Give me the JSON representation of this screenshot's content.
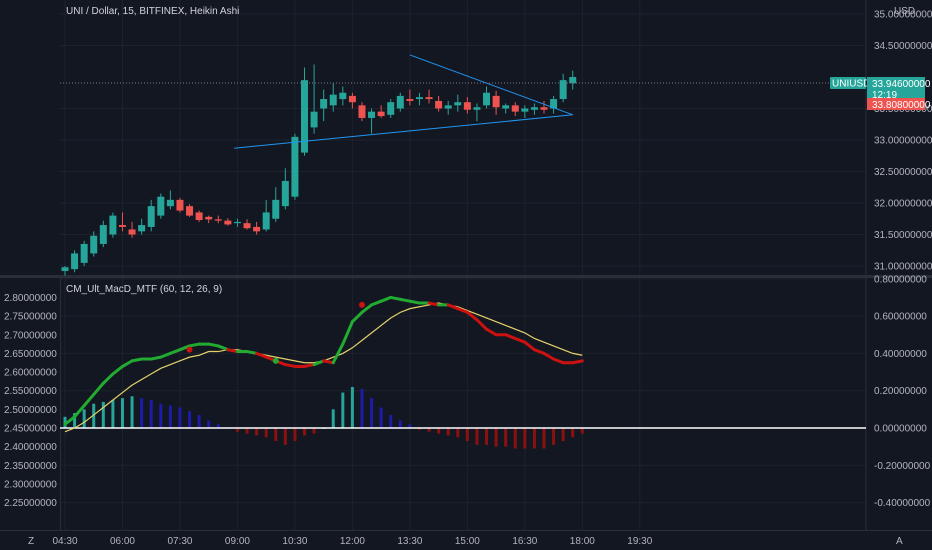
{
  "header": {
    "symbol_title": "UNI / Dollar, 15, BITFINEX, Heikin Ashi",
    "currency": "USD"
  },
  "price_pane": {
    "ticker_tag": "UNIUSD",
    "last_price": "33.94600000",
    "countdown": "12:19",
    "low_tag": "33.80800000",
    "y_ticks": [
      "35.00000000",
      "34.50000000",
      "33.50000000",
      "33.00000000",
      "32.50000000",
      "32.00000000",
      "31.50000000",
      "31.00000000"
    ],
    "colors": {
      "up": "#26a69a",
      "down": "#ef5350",
      "trendline": "#2196f3",
      "last_price_line": "#787b86"
    }
  },
  "indicator_pane": {
    "title": "CM_Ult_MacD_MTF (60, 12, 26, 9)",
    "right_ticks": [
      "0.80000000",
      "0.60000000",
      "0.40000000",
      "0.20000000",
      "0.00000000",
      "-0.20000000",
      "-0.40000000"
    ],
    "left_ticks": [
      "2.80000000",
      "2.75000000",
      "2.70000000",
      "2.65000000",
      "2.60000000",
      "2.55000000",
      "2.50000000",
      "2.45000000",
      "2.40000000",
      "2.35000000",
      "2.30000000",
      "2.25000000"
    ],
    "colors": {
      "macd_up": "#22ab31",
      "macd_down": "#cc1111",
      "signal": "#e6d26b",
      "hist_teal": "#26a69a",
      "hist_blue": "#1c1ca8",
      "hist_red": "#8b1010",
      "zero_line": "#ffffff"
    }
  },
  "x_axis": {
    "ticks": [
      "04:30",
      "06:00",
      "07:30",
      "09:00",
      "10:30",
      "12:00",
      "13:30",
      "15:00",
      "16:30",
      "18:00",
      "19:30"
    ]
  },
  "corner_labels": {
    "left": "Z",
    "right": "A"
  },
  "chart_data": [
    {
      "type": "candlestick",
      "title": "UNI / Dollar, 15, BITFINEX, Heikin Ashi",
      "x_start": "04:30",
      "interval_minutes": 15,
      "ylim": [
        30.85,
        35.2
      ],
      "ohlc": [
        [
          30.92,
          31.0,
          30.85,
          30.98
        ],
        [
          30.95,
          31.25,
          30.9,
          31.2
        ],
        [
          31.05,
          31.4,
          31.0,
          31.35
        ],
        [
          31.2,
          31.55,
          31.15,
          31.48
        ],
        [
          31.35,
          31.72,
          31.3,
          31.65
        ],
        [
          31.5,
          31.85,
          31.45,
          31.8
        ],
        [
          31.65,
          31.85,
          31.55,
          31.62
        ],
        [
          31.58,
          31.7,
          31.45,
          31.5
        ],
        [
          31.55,
          31.75,
          31.5,
          31.65
        ],
        [
          31.62,
          32.05,
          31.55,
          31.95
        ],
        [
          31.8,
          32.15,
          31.75,
          32.1
        ],
        [
          31.95,
          32.2,
          31.9,
          32.05
        ],
        [
          32.05,
          32.08,
          31.85,
          31.88
        ],
        [
          31.95,
          31.98,
          31.78,
          31.8
        ],
        [
          31.85,
          31.88,
          31.7,
          31.73
        ],
        [
          31.78,
          31.8,
          31.68,
          31.74
        ],
        [
          31.74,
          31.8,
          31.68,
          31.72
        ],
        [
          31.72,
          31.76,
          31.64,
          31.66
        ],
        [
          31.68,
          31.75,
          31.62,
          31.7
        ],
        [
          31.68,
          31.74,
          31.58,
          31.6
        ],
        [
          31.62,
          31.7,
          31.5,
          31.55
        ],
        [
          31.58,
          32.05,
          31.55,
          31.85
        ],
        [
          31.75,
          32.25,
          31.7,
          32.05
        ],
        [
          31.95,
          32.55,
          31.9,
          32.35
        ],
        [
          32.1,
          33.1,
          32.05,
          33.05
        ],
        [
          32.8,
          34.15,
          32.75,
          33.95
        ],
        [
          33.2,
          34.2,
          33.1,
          33.45
        ],
        [
          33.5,
          33.8,
          33.3,
          33.65
        ],
        [
          33.55,
          33.9,
          33.45,
          33.72
        ],
        [
          33.65,
          33.85,
          33.55,
          33.75
        ],
        [
          33.7,
          33.75,
          33.5,
          33.6
        ],
        [
          33.55,
          33.6,
          33.3,
          33.35
        ],
        [
          33.35,
          33.5,
          33.1,
          33.45
        ],
        [
          33.45,
          33.55,
          33.35,
          33.38
        ],
        [
          33.4,
          33.65,
          33.35,
          33.6
        ],
        [
          33.5,
          33.75,
          33.45,
          33.7
        ],
        [
          33.65,
          33.8,
          33.55,
          33.62
        ],
        [
          33.65,
          33.75,
          33.55,
          33.68
        ],
        [
          33.68,
          33.8,
          33.58,
          33.65
        ],
        [
          33.62,
          33.7,
          33.45,
          33.5
        ],
        [
          33.5,
          33.62,
          33.4,
          33.55
        ],
        [
          33.55,
          33.72,
          33.45,
          33.6
        ],
        [
          33.6,
          33.68,
          33.42,
          33.48
        ],
        [
          33.48,
          33.58,
          33.3,
          33.52
        ],
        [
          33.55,
          33.85,
          33.5,
          33.75
        ],
        [
          33.7,
          33.78,
          33.4,
          33.52
        ],
        [
          33.5,
          33.58,
          33.42,
          33.55
        ],
        [
          33.55,
          33.6,
          33.38,
          33.45
        ],
        [
          33.45,
          33.55,
          33.35,
          33.5
        ],
        [
          33.48,
          33.58,
          33.4,
          33.52
        ],
        [
          33.52,
          33.62,
          33.42,
          33.48
        ],
        [
          33.5,
          33.7,
          33.42,
          33.65
        ],
        [
          33.65,
          34.05,
          33.6,
          33.95
        ],
        [
          33.9,
          34.1,
          33.8,
          34.0
        ]
      ],
      "trendlines": [
        {
          "from": [
            "13:30",
            34.35
          ],
          "to": [
            "17:45",
            33.4
          ]
        },
        {
          "from": [
            "08:55",
            32.87
          ],
          "to": [
            "17:45",
            33.4
          ]
        }
      ],
      "last_price": 33.946
    },
    {
      "type": "line",
      "title": "CM_Ult_MacD_MTF (60, 12, 26, 9)",
      "ylim": [
        -0.48,
        0.8
      ],
      "series": [
        {
          "values": [
            0.02,
            0.06,
            0.12,
            0.18,
            0.24,
            0.29,
            0.33,
            0.36,
            0.37,
            0.37,
            0.38,
            0.4,
            0.42,
            0.44,
            0.45,
            0.45,
            0.44,
            0.42,
            0.41,
            0.41,
            0.4,
            0.38,
            0.36,
            0.34,
            0.33,
            0.33,
            0.34,
            0.36,
            0.35,
            0.45,
            0.57,
            0.62,
            0.66,
            0.68,
            0.7,
            0.69,
            0.68,
            0.67,
            0.67,
            0.66,
            0.66,
            0.64,
            0.62,
            0.58,
            0.53,
            0.5,
            0.5,
            0.48,
            0.46,
            0.42,
            0.4,
            0.37,
            0.35,
            0.35,
            0.36
          ]
        },
        {
          "values": [
            -0.02,
            0.0,
            0.03,
            0.07,
            0.11,
            0.15,
            0.19,
            0.23,
            0.26,
            0.29,
            0.32,
            0.34,
            0.36,
            0.38,
            0.39,
            0.41,
            0.41,
            0.42,
            0.42,
            0.41,
            0.4,
            0.39,
            0.38,
            0.37,
            0.36,
            0.35,
            0.35,
            0.36,
            0.38,
            0.4,
            0.43,
            0.47,
            0.51,
            0.55,
            0.59,
            0.62,
            0.64,
            0.65,
            0.66,
            0.67,
            0.66,
            0.65,
            0.63,
            0.61,
            0.59,
            0.57,
            0.55,
            0.53,
            0.51,
            0.48,
            0.46,
            0.44,
            0.42,
            0.4,
            0.39
          ]
        }
      ],
      "histogram": [
        0.06,
        0.08,
        0.1,
        0.13,
        0.14,
        0.15,
        0.16,
        0.17,
        0.16,
        0.15,
        0.13,
        0.12,
        0.11,
        0.09,
        0.07,
        0.04,
        0.02,
        0.0,
        -0.02,
        -0.03,
        -0.04,
        -0.05,
        -0.07,
        -0.09,
        -0.07,
        -0.04,
        -0.03,
        0.0,
        0.1,
        0.19,
        0.22,
        0.21,
        0.16,
        0.11,
        0.07,
        0.04,
        0.02,
        -0.01,
        -0.02,
        -0.03,
        -0.04,
        -0.05,
        -0.07,
        -0.09,
        -0.09,
        -0.1,
        -0.1,
        -0.11,
        -0.11,
        -0.11,
        -0.11,
        -0.09,
        -0.07,
        -0.05,
        -0.03
      ],
      "cross_markers": [
        [
          "07:45",
          0.42
        ],
        [
          "10:00",
          0.36
        ],
        [
          "12:15",
          0.66
        ]
      ]
    }
  ]
}
